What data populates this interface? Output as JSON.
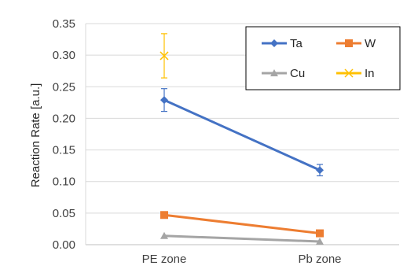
{
  "chart_data": {
    "type": "line",
    "categories": [
      "PE zone",
      "Pb zone"
    ],
    "ylabel": "Reaction Rate [a.u.]",
    "ylim": [
      0,
      0.35
    ],
    "yticks": [
      "0.00",
      "0.05",
      "0.10",
      "0.15",
      "0.20",
      "0.25",
      "0.30",
      "0.35"
    ],
    "grid": true,
    "legend_position": "top-right",
    "series": [
      {
        "name": "Ta",
        "color": "#4472C4",
        "marker": "diamond",
        "values": [
          0.229,
          0.118
        ],
        "errors": [
          0.018,
          0.009
        ]
      },
      {
        "name": "W",
        "color": "#ED7D31",
        "marker": "square",
        "values": [
          0.047,
          0.018
        ],
        "errors": [
          0,
          0
        ]
      },
      {
        "name": "Cu",
        "color": "#A5A5A5",
        "marker": "triangle",
        "values": [
          0.014,
          0.005
        ],
        "errors": [
          0,
          0
        ]
      },
      {
        "name": "In",
        "color": "#FFC000",
        "marker": "x",
        "values": [
          0.299,
          null
        ],
        "errors": [
          0.035,
          null
        ]
      }
    ]
  }
}
